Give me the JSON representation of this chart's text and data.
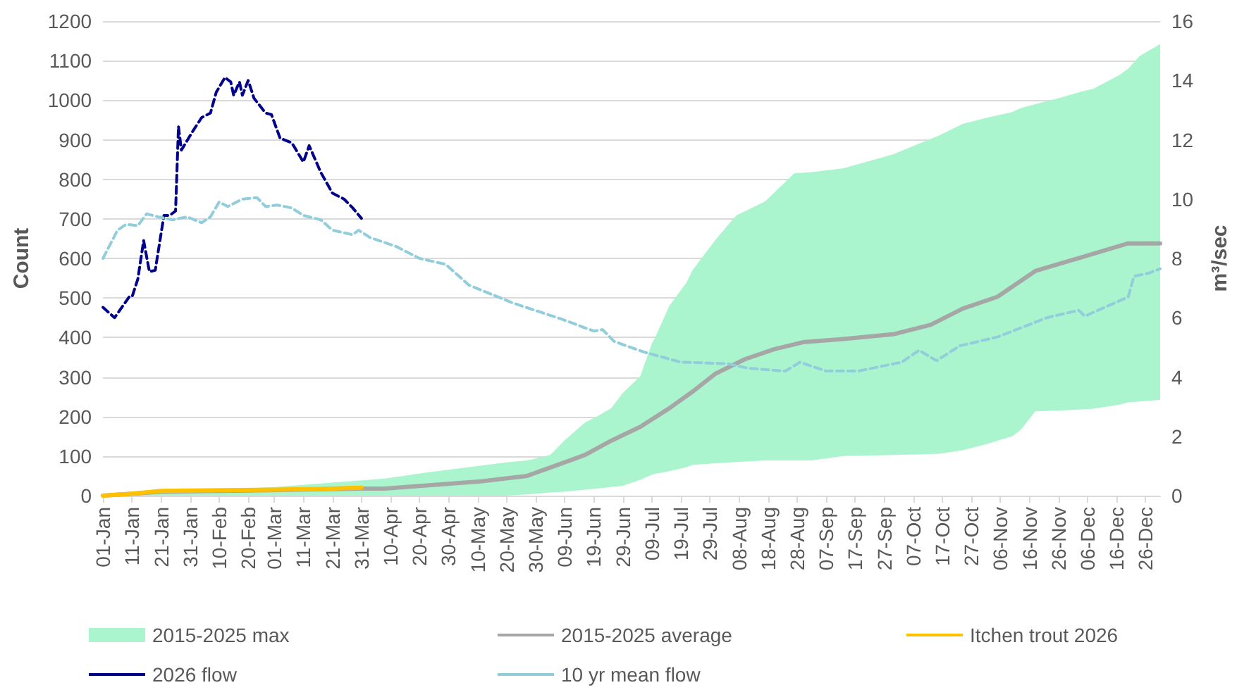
{
  "chart_data": {
    "type": "line",
    "ylabel": "Count",
    "y2label": "m³/sec",
    "xlim": [
      "--01-01",
      "--12-31"
    ],
    "xticks": [
      {
        "value": "--01-01",
        "label": "01-Jan"
      },
      {
        "value": "--01-11",
        "label": "11-Jan"
      },
      {
        "value": "--01-21",
        "label": "21-Jan"
      },
      {
        "value": "--01-31",
        "label": "31-Jan"
      },
      {
        "value": "--02-10",
        "label": "10-Feb"
      },
      {
        "value": "--02-20",
        "label": "20-Feb"
      },
      {
        "value": "--03-01",
        "label": "01-Mar"
      },
      {
        "value": "--03-11",
        "label": "11-Mar"
      },
      {
        "value": "--03-21",
        "label": "21-Mar"
      },
      {
        "value": "--03-31",
        "label": "31-Mar"
      },
      {
        "value": "--04-10",
        "label": "10-Apr"
      },
      {
        "value": "--04-20",
        "label": "20-Apr"
      },
      {
        "value": "--04-30",
        "label": "30-Apr"
      },
      {
        "value": "--05-10",
        "label": "10-May"
      },
      {
        "value": "--05-20",
        "label": "20-May"
      },
      {
        "value": "--05-30",
        "label": "30-May"
      },
      {
        "value": "--06-09",
        "label": "09-Jun"
      },
      {
        "value": "--06-19",
        "label": "19-Jun"
      },
      {
        "value": "--06-29",
        "label": "29-Jun"
      },
      {
        "value": "--07-09",
        "label": "09-Jul"
      },
      {
        "value": "--07-19",
        "label": "19-Jul"
      },
      {
        "value": "--07-29",
        "label": "29-Jul"
      },
      {
        "value": "--08-08",
        "label": "08-Aug"
      },
      {
        "value": "--08-18",
        "label": "18-Aug"
      },
      {
        "value": "--08-28",
        "label": "28-Aug"
      },
      {
        "value": "--09-07",
        "label": "07-Sep"
      },
      {
        "value": "--09-17",
        "label": "17-Sep"
      },
      {
        "value": "--09-27",
        "label": "27-Sep"
      },
      {
        "value": "--10-07",
        "label": "07-Oct"
      },
      {
        "value": "--10-17",
        "label": "17-Oct"
      },
      {
        "value": "--10-27",
        "label": "27-Oct"
      },
      {
        "value": "--11-06",
        "label": "06-Nov"
      },
      {
        "value": "--11-16",
        "label": "16-Nov"
      },
      {
        "value": "--11-26",
        "label": "26-Nov"
      },
      {
        "value": "--12-06",
        "label": "06-Dec"
      },
      {
        "value": "--12-16",
        "label": "16-Dec"
      },
      {
        "value": "--12-26",
        "label": "26-Dec"
      }
    ],
    "ylim": [
      0,
      1200
    ],
    "yticks": [
      0,
      100,
      200,
      300,
      400,
      500,
      600,
      700,
      800,
      900,
      1000,
      1100,
      1200
    ],
    "y2lim": [
      0,
      16
    ],
    "y2ticks": [
      0,
      2,
      4,
      6,
      8,
      10,
      12,
      14,
      16
    ],
    "grid": "y",
    "legend": "bottom",
    "marker": "none",
    "series": [
      {
        "name": "2015-2025 max",
        "type": "area",
        "color": "#aaf5cd",
        "x": [
          "--01-01",
          "--02-01",
          "--03-01",
          "--04-08",
          "--04-24",
          "--05-20",
          "--05-27",
          "--05-30",
          "--06-04",
          "--06-09",
          "--06-16",
          "--06-20",
          "--06-25",
          "--06-29",
          "--07-05",
          "--07-09",
          "--07-10",
          "--07-15",
          "--07-21",
          "--07-23",
          "--07-31",
          "--08-07",
          "--08-17",
          "--08-27",
          "--09-02",
          "--09-13",
          "--09-30",
          "--10-08",
          "--10-16",
          "--10-24",
          "--11-01",
          "--11-10",
          "--11-13",
          "--11-18",
          "--11-26",
          "--12-04",
          "--12-08",
          "--12-17",
          "--12-20",
          "--12-24",
          "--12-31"
        ],
        "values": [
          3,
          12,
          22,
          43,
          60,
          84,
          89,
          94,
          103,
          140,
          185,
          200,
          221,
          260,
          302,
          385,
          398,
          480,
          540,
          570,
          648,
          708,
          744,
          815,
          818,
          828,
          863,
          887,
          911,
          940,
          955,
          970,
          980,
          990,
          1005,
          1022,
          1029,
          1064,
          1080,
          1112,
          1142
        ]
      },
      {
        "type": "area",
        "color": "#ffffff",
        "x": [
          "--01-01",
          "--02-01",
          "--03-01",
          "--04-08",
          "--04-24",
          "--05-20",
          "--05-27",
          "--05-30",
          "--06-04",
          "--06-09",
          "--06-16",
          "--06-20",
          "--06-25",
          "--06-29",
          "--07-05",
          "--07-09",
          "--07-10",
          "--07-15",
          "--07-21",
          "--07-23",
          "--07-31",
          "--08-07",
          "--08-17",
          "--08-27",
          "--09-02",
          "--09-13",
          "--09-30",
          "--10-08",
          "--10-16",
          "--10-24",
          "--11-01",
          "--11-10",
          "--11-13",
          "--11-18",
          "--11-26",
          "--12-04",
          "--12-08",
          "--12-17",
          "--12-20",
          "--12-24",
          "--12-31"
        ],
        "values": [
          0,
          0,
          0,
          0,
          0,
          0,
          3,
          5,
          8,
          10,
          15,
          18,
          22,
          25,
          40,
          53,
          55,
          62,
          72,
          78,
          82,
          85,
          89,
          89,
          89,
          100,
          103,
          104,
          106,
          115,
          130,
          150,
          166,
          213,
          215,
          218,
          220,
          230,
          236,
          238,
          242
        ]
      },
      {
        "name": "2015-2025 average",
        "type": "line",
        "color": "#a6a6a6",
        "line_style": "solid",
        "x": [
          "--01-01",
          "--01-21",
          "--02-20",
          "--03-31",
          "--04-08",
          "--05-11",
          "--05-27",
          "--06-04",
          "--06-16",
          "--06-25",
          "--07-05",
          "--07-15",
          "--07-23",
          "--07-31",
          "--08-10",
          "--08-20",
          "--08-30",
          "--09-13",
          "--09-30",
          "--10-13",
          "--10-24",
          "--11-05",
          "--11-18",
          "--12-04",
          "--12-20",
          "--12-31"
        ],
        "values": [
          0,
          10,
          13,
          18,
          18,
          36,
          50,
          71,
          103,
          139,
          174,
          221,
          263,
          309,
          345,
          370,
          388,
          396,
          408,
          432,
          473,
          503,
          568,
          603,
          638,
          638
        ]
      },
      {
        "name": "Itchen trout 2026",
        "type": "line",
        "color": "#ffc000",
        "line_style": "solid",
        "x": [
          "--01-01",
          "--01-11",
          "--01-21",
          "--01-31",
          "--03-01",
          "--03-16",
          "--03-31"
        ],
        "values": [
          0,
          5,
          12,
          13,
          15,
          17,
          20
        ]
      },
      {
        "name": "2026 flow",
        "type": "line",
        "axis": "y2",
        "color": "#00008b",
        "line_style": "dashed",
        "x": [
          "--01-01",
          "--01-05",
          "--01-10",
          "--01-11",
          "--01-13",
          "--01-15",
          "--01-17",
          "--01-19",
          "--01-22",
          "--01-24",
          "--01-26",
          "--01-27",
          "--01-28",
          "--02-01",
          "--02-04",
          "--02-07",
          "--02-09",
          "--02-12",
          "--02-14",
          "--02-15",
          "--02-17",
          "--02-18",
          "--02-20",
          "--02-22",
          "--02-26",
          "--02-28",
          "--03-03",
          "--03-07",
          "--03-11",
          "--03-13",
          "--03-17",
          "--03-21",
          "--03-25",
          "--03-28",
          "--03-31"
        ],
        "values": [
          6.35,
          6.0,
          6.7,
          6.7,
          7.3,
          8.6,
          7.55,
          7.6,
          9.45,
          9.45,
          9.6,
          12.45,
          11.65,
          12.3,
          12.75,
          12.9,
          13.6,
          14.1,
          13.95,
          13.5,
          13.95,
          13.5,
          14.0,
          13.4,
          12.9,
          12.85,
          12.05,
          11.9,
          11.25,
          11.8,
          10.9,
          10.2,
          10.0,
          9.7,
          9.35
        ]
      },
      {
        "name": "10 yr mean flow",
        "type": "line",
        "axis": "y2",
        "color": "#92cddc",
        "line_style": "dashed",
        "x": [
          "--01-01",
          "--01-06",
          "--01-09",
          "--01-13",
          "--01-16",
          "--01-20",
          "--01-25",
          "--01-30",
          "--02-04",
          "--02-07",
          "--02-10",
          "--02-13",
          "--02-18",
          "--02-23",
          "--02-26",
          "--03-02",
          "--03-07",
          "--03-11",
          "--03-17",
          "--03-21",
          "--03-28",
          "--03-30",
          "--04-03",
          "--04-12",
          "--04-20",
          "--04-29",
          "--05-07",
          "--05-22",
          "--06-08",
          "--06-19",
          "--06-22",
          "--06-26",
          "--07-06",
          "--07-19",
          "--08-04",
          "--08-11",
          "--08-24",
          "--08-29",
          "--09-07",
          "--09-18",
          "--10-03",
          "--10-09",
          "--10-15",
          "--10-23",
          "--11-05",
          "--11-22",
          "--12-03",
          "--12-05",
          "--12-20",
          "--12-22",
          "--12-27",
          "--12-31"
        ],
        "values": [
          8.0,
          8.95,
          9.15,
          9.1,
          9.5,
          9.4,
          9.3,
          9.4,
          9.2,
          9.4,
          9.9,
          9.75,
          10.0,
          10.05,
          9.75,
          9.8,
          9.7,
          9.45,
          9.3,
          8.95,
          8.8,
          8.95,
          8.7,
          8.4,
          8.0,
          7.8,
          7.1,
          6.5,
          5.95,
          5.55,
          5.6,
          5.2,
          4.85,
          4.5,
          4.45,
          4.3,
          4.2,
          4.5,
          4.2,
          4.2,
          4.5,
          4.9,
          4.55,
          5.05,
          5.35,
          6.0,
          6.25,
          6.05,
          6.7,
          7.4,
          7.5,
          7.65
        ]
      }
    ]
  }
}
